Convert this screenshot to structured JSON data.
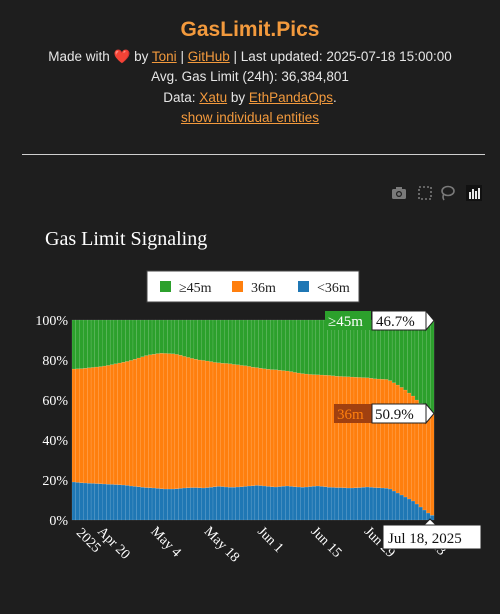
{
  "site": {
    "title": "GasLimit.Pics",
    "made_with": "Made with",
    "by": "by",
    "author_link": "Toni",
    "sep1": "|",
    "github_link": "GitHub",
    "sep2": "|",
    "last_updated": "Last updated: 2025-07-18 15:00:00",
    "avg_gas": "Avg. Gas Limit (24h): 36,384,801",
    "data_label": "Data:",
    "xatu_link": "Xatu",
    "by2": "by",
    "ethpandaops_link": "EthPandaOps",
    "period": ".",
    "entities_link": "show individual entities"
  },
  "toolbar": {
    "icons": [
      "camera-icon",
      "box-select-icon",
      "lasso-icon",
      "plotly-logo-icon"
    ]
  },
  "colors": {
    "green": "#2ca02c",
    "orange": "#ff7f0e",
    "blue": "#1f77b4",
    "accent": "#f39a3d"
  },
  "chart_data": {
    "type": "area",
    "stacked": "percent",
    "title": "Gas Limit Signaling",
    "legend": {
      "placement": "top-center",
      "entries": [
        "≥45m",
        "36m",
        "<36m"
      ]
    },
    "y_ticks": [
      "0%",
      "20%",
      "40%",
      "60%",
      "80%",
      "100%"
    ],
    "ylim": [
      0,
      100
    ],
    "x_ticks": [
      "Apr 20\n2025",
      "May 4",
      "May 18",
      "Jun 1",
      "Jun 15",
      "Jun 29",
      "Jul 13"
    ],
    "x": [
      "2025-04-15",
      "2025-04-16",
      "2025-04-17",
      "2025-04-18",
      "2025-04-19",
      "2025-04-20",
      "2025-04-21",
      "2025-04-22",
      "2025-04-23",
      "2025-04-24",
      "2025-04-25",
      "2025-04-26",
      "2025-04-27",
      "2025-04-28",
      "2025-04-29",
      "2025-04-30",
      "2025-05-01",
      "2025-05-02",
      "2025-05-03",
      "2025-05-04",
      "2025-05-05",
      "2025-05-06",
      "2025-05-07",
      "2025-05-08",
      "2025-05-09",
      "2025-05-10",
      "2025-05-11",
      "2025-05-12",
      "2025-05-13",
      "2025-05-14",
      "2025-05-15",
      "2025-05-16",
      "2025-05-17",
      "2025-05-18",
      "2025-05-19",
      "2025-05-20",
      "2025-05-21",
      "2025-05-22",
      "2025-05-23",
      "2025-05-24",
      "2025-05-25",
      "2025-05-26",
      "2025-05-27",
      "2025-05-28",
      "2025-05-29",
      "2025-05-30",
      "2025-05-31",
      "2025-06-01",
      "2025-06-02",
      "2025-06-03",
      "2025-06-04",
      "2025-06-05",
      "2025-06-06",
      "2025-06-07",
      "2025-06-08",
      "2025-06-09",
      "2025-06-10",
      "2025-06-11",
      "2025-06-12",
      "2025-06-13",
      "2025-06-14",
      "2025-06-15",
      "2025-06-16",
      "2025-06-17",
      "2025-06-18",
      "2025-06-19",
      "2025-06-20",
      "2025-06-21",
      "2025-06-22",
      "2025-06-23",
      "2025-06-24",
      "2025-06-25",
      "2025-06-26",
      "2025-06-27",
      "2025-06-28",
      "2025-06-29",
      "2025-06-30",
      "2025-07-01",
      "2025-07-02",
      "2025-07-03",
      "2025-07-04",
      "2025-07-05",
      "2025-07-06",
      "2025-07-07",
      "2025-07-08",
      "2025-07-09",
      "2025-07-10",
      "2025-07-11",
      "2025-07-12",
      "2025-07-13",
      "2025-07-14",
      "2025-07-15",
      "2025-07-16",
      "2025-07-17",
      "2025-07-18"
    ],
    "series": [
      {
        "name": "<36m",
        "values": [
          19.0,
          18.8,
          18.6,
          18.5,
          18.4,
          18.3,
          18.2,
          18.1,
          18.0,
          17.9,
          17.8,
          17.7,
          17.6,
          17.5,
          17.3,
          17.0,
          16.8,
          16.6,
          16.4,
          16.2,
          16.1,
          16.0,
          15.8,
          15.6,
          15.5,
          15.5,
          15.5,
          15.6,
          15.8,
          16.0,
          16.1,
          16.2,
          16.2,
          16.1,
          16.0,
          16.2,
          16.4,
          16.6,
          16.8,
          16.7,
          16.5,
          16.4,
          16.4,
          16.5,
          16.6,
          16.8,
          17.0,
          17.1,
          17.3,
          17.2,
          17.0,
          16.8,
          16.6,
          16.5,
          16.7,
          16.9,
          17.0,
          16.8,
          16.6,
          16.5,
          16.4,
          16.5,
          16.7,
          16.9,
          17.0,
          16.8,
          16.6,
          16.4,
          16.3,
          16.2,
          16.2,
          16.1,
          16.0,
          16.0,
          16.1,
          16.2,
          16.4,
          16.5,
          16.4,
          16.2,
          16.1,
          16.0,
          15.9,
          15.5,
          14.5,
          13.5,
          12.5,
          11.5,
          10.5,
          9.5,
          8.0,
          6.5,
          5.0,
          3.5,
          2.4
        ]
      },
      {
        "name": "36m",
        "values": [
          56.5,
          56.8,
          57.1,
          57.4,
          57.7,
          58.0,
          58.3,
          58.6,
          59.0,
          59.4,
          59.9,
          60.4,
          60.9,
          61.4,
          62.0,
          62.8,
          63.6,
          64.4,
          65.2,
          66.0,
          66.5,
          66.9,
          67.4,
          67.8,
          67.8,
          67.7,
          67.6,
          67.2,
          66.6,
          65.8,
          65.2,
          64.6,
          64.2,
          63.9,
          63.8,
          63.3,
          62.8,
          62.2,
          61.8,
          61.7,
          61.8,
          61.7,
          61.4,
          61.1,
          60.7,
          60.3,
          59.8,
          59.3,
          58.9,
          58.7,
          58.6,
          58.6,
          58.6,
          58.6,
          58.2,
          57.8,
          57.5,
          57.4,
          57.2,
          57.0,
          56.8,
          56.5,
          56.1,
          55.8,
          55.6,
          55.7,
          55.8,
          55.9,
          55.8,
          55.7,
          55.6,
          55.6,
          55.6,
          55.5,
          55.3,
          55.1,
          54.8,
          54.6,
          54.5,
          54.4,
          54.4,
          54.4,
          54.4,
          54.2,
          54.1,
          54.0,
          53.8,
          53.5,
          53.0,
          52.5,
          52.0,
          51.8,
          51.5,
          51.2,
          50.9
        ]
      },
      {
        "name": "≥45m",
        "values": [
          24.5,
          24.4,
          24.3,
          24.1,
          23.9,
          23.7,
          23.5,
          23.3,
          23.0,
          22.7,
          22.3,
          21.9,
          21.5,
          21.1,
          20.7,
          20.2,
          19.6,
          19.0,
          18.4,
          17.8,
          17.4,
          17.1,
          16.8,
          16.6,
          16.7,
          16.8,
          16.9,
          17.2,
          17.6,
          18.2,
          18.7,
          19.2,
          19.6,
          20.0,
          20.2,
          20.5,
          20.8,
          21.2,
          21.4,
          21.6,
          21.7,
          21.9,
          22.2,
          22.4,
          22.7,
          22.9,
          23.2,
          23.6,
          23.8,
          24.1,
          24.4,
          24.6,
          24.8,
          24.9,
          25.1,
          25.3,
          25.5,
          25.8,
          26.2,
          26.5,
          26.8,
          27.0,
          27.2,
          27.3,
          27.4,
          27.5,
          27.6,
          27.7,
          27.9,
          28.1,
          28.2,
          28.3,
          28.4,
          28.5,
          28.6,
          28.7,
          28.8,
          28.9,
          29.1,
          29.4,
          29.5,
          29.6,
          29.7,
          30.3,
          31.4,
          32.5,
          33.7,
          35.0,
          36.5,
          38.0,
          40.0,
          41.7,
          43.5,
          45.3,
          46.7
        ]
      }
    ],
    "annotations": {
      "hover_date": "Jul 18, 2025",
      "green_tag": "≥45m",
      "green_value": "46.7%",
      "orange_tag": "36m",
      "orange_value": "50.9%"
    }
  }
}
